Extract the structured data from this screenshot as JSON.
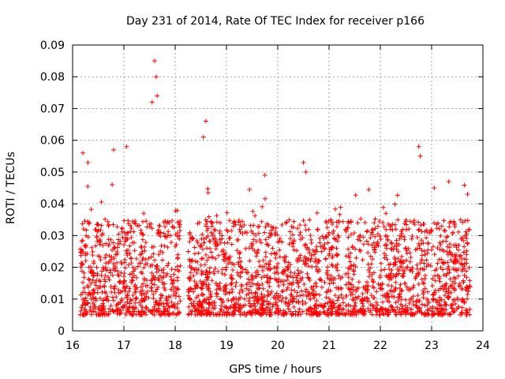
{
  "chart_data": {
    "type": "scatter",
    "title": "Day 231 of 2014, Rate Of TEC Index for receiver p166",
    "xlabel": "GPS time / hours",
    "ylabel": "ROTI / TECUs",
    "xlim": [
      16,
      24
    ],
    "ylim": [
      0,
      0.09
    ],
    "xticks": [
      "16",
      "17",
      "18",
      "19",
      "20",
      "21",
      "22",
      "23",
      "24"
    ],
    "yticks": [
      "0",
      "0.01",
      "0.02",
      "0.03",
      "0.04",
      "0.05",
      "0.06",
      "0.07",
      "0.08",
      "0.09"
    ],
    "grid": true,
    "marker": "+",
    "series_color": "#ff0000",
    "series": [
      {
        "name": "ROTI",
        "notable_points": [
          {
            "x": 16.2,
            "y": 0.056
          },
          {
            "x": 16.3,
            "y": 0.053
          },
          {
            "x": 16.8,
            "y": 0.057
          },
          {
            "x": 17.05,
            "y": 0.058
          },
          {
            "x": 17.55,
            "y": 0.072
          },
          {
            "x": 17.6,
            "y": 0.085
          },
          {
            "x": 17.63,
            "y": 0.08
          },
          {
            "x": 17.65,
            "y": 0.074
          },
          {
            "x": 18.55,
            "y": 0.061
          },
          {
            "x": 18.6,
            "y": 0.066
          },
          {
            "x": 19.75,
            "y": 0.049
          },
          {
            "x": 20.5,
            "y": 0.053
          },
          {
            "x": 20.55,
            "y": 0.05
          },
          {
            "x": 22.75,
            "y": 0.058
          },
          {
            "x": 22.78,
            "y": 0.055
          },
          {
            "x": 23.05,
            "y": 0.045
          },
          {
            "x": 23.7,
            "y": 0.043
          }
        ],
        "time_range": [
          16.15,
          23.75
        ],
        "gap": [
          18.1,
          18.25
        ],
        "typical_range": [
          0.005,
          0.035
        ]
      }
    ]
  }
}
